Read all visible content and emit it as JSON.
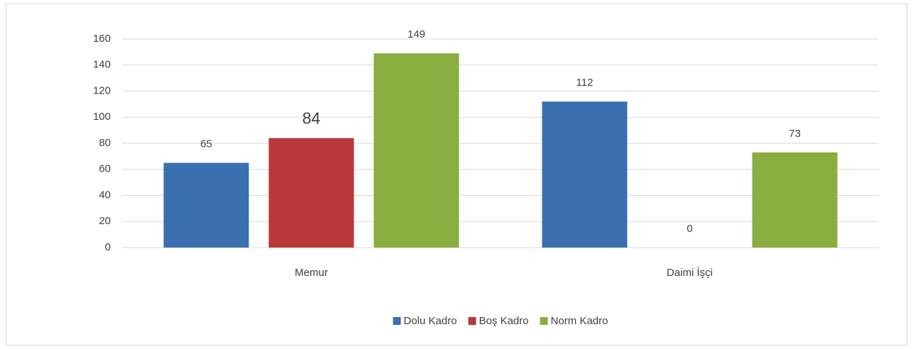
{
  "chart_data": {
    "type": "bar",
    "categories": [
      "Memur",
      "Daimi İşçi"
    ],
    "series": [
      {
        "name": "Dolu Kadro",
        "color": "#3a6fb0",
        "values": [
          65,
          112
        ]
      },
      {
        "name": "Boş Kadro",
        "color": "#b9393a",
        "values": [
          84,
          0
        ]
      },
      {
        "name": "Norm Kadro",
        "color": "#8aad3f",
        "values": [
          149,
          73
        ]
      }
    ],
    "ylim": [
      0,
      160
    ],
    "yticks": [
      0,
      20,
      40,
      60,
      80,
      100,
      120,
      140,
      160
    ],
    "grid": true,
    "legend": "bottom"
  }
}
